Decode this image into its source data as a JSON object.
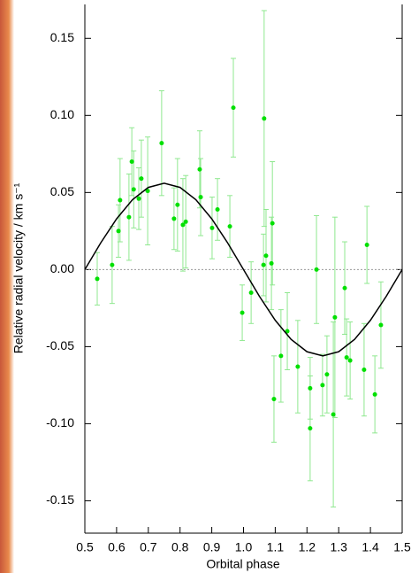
{
  "chart_data": {
    "type": "scatter",
    "x_label": "Orbital phase",
    "y_label": "Relative radial velocity / km s⁻¹",
    "xlim": [
      0.5,
      1.5
    ],
    "ylim": [
      -0.171,
      0.172
    ],
    "xticks": [
      0.5,
      0.6,
      0.7,
      0.8,
      0.9,
      {
        "value": 1.0,
        "label": "1.0"
      },
      1.1,
      1.2,
      1.3,
      1.4,
      1.5
    ],
    "yticks": [
      0.15,
      {
        "value": 0.1,
        "label": "0.10"
      },
      0.05,
      {
        "value": 0,
        "label": "0.00"
      },
      -0.05,
      {
        "value": -0.1,
        "label": "-0.10"
      },
      -0.15
    ],
    "hline": 0,
    "series": [
      {
        "type": "scatter",
        "color": "#00e000",
        "error_color": "#8fe88f",
        "x": [
          0.539,
          0.586,
          0.606,
          0.611,
          0.639,
          0.648,
          0.654,
          0.67,
          0.678,
          0.698,
          0.742,
          0.781,
          0.792,
          0.809,
          0.818,
          0.862,
          0.865,
          0.901,
          0.918,
          0.957,
          0.968,
          0.996,
          1.024,
          1.063,
          1.065,
          1.071,
          1.088,
          1.091,
          1.096,
          1.118,
          1.138,
          1.171,
          1.21,
          1.21,
          1.23,
          1.249,
          1.263,
          1.283,
          1.288,
          1.319,
          1.325,
          1.336,
          1.38,
          1.389,
          1.414,
          1.433
        ],
        "values": [
          -0.006,
          0.003,
          0.025,
          0.045,
          0.034,
          0.07,
          0.052,
          0.046,
          0.059,
          0.051,
          0.082,
          0.033,
          0.042,
          0.029,
          0.031,
          0.065,
          0.047,
          0.027,
          0.039,
          0.028,
          0.105,
          -0.028,
          -0.015,
          0.003,
          0.098,
          0.009,
          0.004,
          0.03,
          -0.084,
          -0.056,
          -0.04,
          -0.063,
          -0.077,
          -0.103,
          0.0,
          -0.075,
          -0.068,
          -0.094,
          -0.031,
          -0.012,
          -0.057,
          -0.059,
          -0.065,
          0.016,
          -0.081,
          -0.036
        ],
        "errors": [
          0.017,
          0.025,
          0.017,
          0.027,
          0.028,
          0.022,
          0.025,
          0.02,
          0.025,
          0.035,
          0.034,
          0.02,
          0.03,
          0.03,
          0.03,
          0.025,
          0.025,
          0.02,
          0.02,
          0.02,
          0.032,
          0.018,
          0.02,
          0.02,
          0.07,
          0.03,
          0.03,
          0.04,
          0.028,
          0.03,
          0.025,
          0.03,
          0.02,
          0.034,
          0.035,
          0.02,
          0.025,
          0.06,
          0.065,
          0.03,
          0.025,
          0.025,
          0.03,
          0.025,
          0.025,
          0.028
        ]
      },
      {
        "type": "line",
        "color": "#000000",
        "x": [
          0.5,
          0.55,
          0.6,
          0.65,
          0.7,
          0.75,
          0.8,
          0.85,
          0.9,
          0.95,
          1.0,
          1.05,
          1.1,
          1.15,
          1.2,
          1.25,
          1.3,
          1.35,
          1.4,
          1.45,
          1.5
        ],
        "values": [
          0,
          0.0173,
          0.0329,
          0.0453,
          0.0533,
          0.056,
          0.0533,
          0.0453,
          0.0329,
          0.0173,
          0,
          -0.0173,
          -0.0329,
          -0.0453,
          -0.0533,
          -0.056,
          -0.0533,
          -0.0453,
          -0.0329,
          -0.0173,
          0
        ]
      }
    ]
  }
}
